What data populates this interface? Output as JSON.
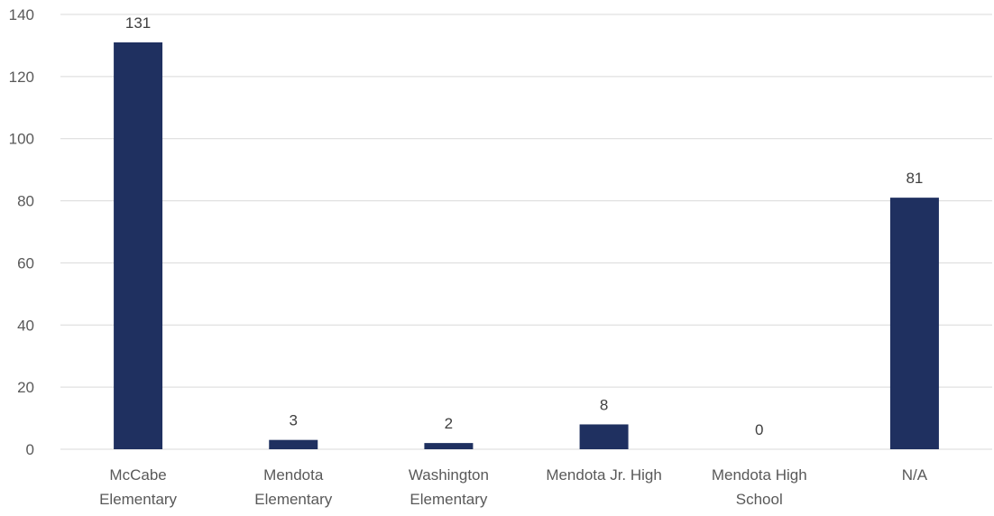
{
  "chart_data": {
    "type": "bar",
    "title": "",
    "xlabel": "",
    "ylabel": "",
    "categories": [
      [
        "McCabe",
        "Elementary"
      ],
      [
        "Mendota",
        "Elementary"
      ],
      [
        "Washington",
        "Elementary"
      ],
      [
        "Mendota Jr. High"
      ],
      [
        "Mendota High",
        "School"
      ],
      [
        "N/A"
      ]
    ],
    "values": [
      131,
      3,
      2,
      8,
      0,
      81
    ],
    "data_labels": [
      "131",
      "3",
      "2",
      "8",
      "0",
      "81"
    ],
    "ylim": [
      0,
      140
    ],
    "yticks": [
      0,
      20,
      40,
      60,
      80,
      100,
      120,
      140
    ],
    "grid": true,
    "legend": "none",
    "bar_color": "#1f3060"
  }
}
